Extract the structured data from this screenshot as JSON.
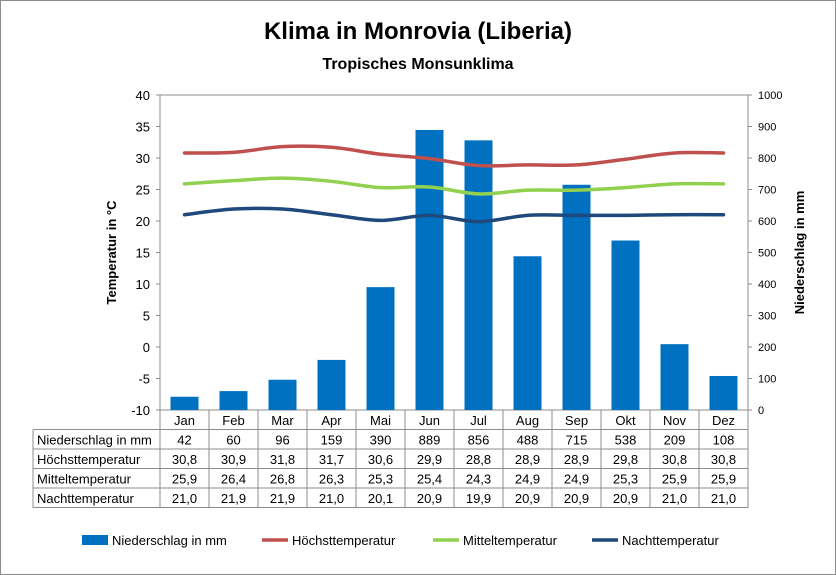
{
  "chart_data": {
    "type": "bar+line",
    "title": "Klima in Monrovia (Liberia)",
    "subtitle": "Tropisches Monsunklima",
    "categories": [
      "Jan",
      "Feb",
      "Mar",
      "Apr",
      "Mai",
      "Jun",
      "Jul",
      "Aug",
      "Sep",
      "Okt",
      "Nov",
      "Dez"
    ],
    "y_left": {
      "label": "Temperatur in °C",
      "range": [
        -10,
        40
      ],
      "step": 5
    },
    "y_right": {
      "label": "Niederschlag in mm",
      "range": [
        0,
        1000
      ],
      "step": 100
    },
    "series": [
      {
        "name": "Niederschlag in mm",
        "type": "bar",
        "axis": "right",
        "color": "#0070c0",
        "values": [
          42,
          60,
          96,
          159,
          390,
          889,
          856,
          488,
          715,
          538,
          209,
          108
        ],
        "labels": [
          "42",
          "60",
          "96",
          "159",
          "390",
          "889",
          "856",
          "488",
          "715",
          "538",
          "209",
          "108"
        ]
      },
      {
        "name": "Höchsttemperatur",
        "type": "line",
        "axis": "left",
        "color": "#c0504d",
        "values": [
          30.8,
          30.9,
          31.8,
          31.7,
          30.6,
          29.9,
          28.8,
          28.9,
          28.9,
          29.8,
          30.8,
          30.8
        ],
        "labels": [
          "30,8",
          "30,9",
          "31,8",
          "31,7",
          "30,6",
          "29,9",
          "28,8",
          "28,9",
          "28,9",
          "29,8",
          "30,8",
          "30,8"
        ]
      },
      {
        "name": "Mitteltemperatur",
        "type": "line",
        "axis": "left",
        "color": "#92d050",
        "values": [
          25.9,
          26.4,
          26.8,
          26.3,
          25.3,
          25.4,
          24.3,
          24.9,
          24.9,
          25.3,
          25.9,
          25.9
        ],
        "labels": [
          "25,9",
          "26,4",
          "26,8",
          "26,3",
          "25,3",
          "25,4",
          "24,3",
          "24,9",
          "24,9",
          "25,3",
          "25,9",
          "25,9"
        ]
      },
      {
        "name": "Nachttemperatur",
        "type": "line",
        "axis": "left",
        "color": "#1f497d",
        "values": [
          21.0,
          21.9,
          21.9,
          21.0,
          20.1,
          20.9,
          19.9,
          20.9,
          20.9,
          20.9,
          21.0,
          21.0
        ],
        "labels": [
          "21,0",
          "21,9",
          "21,9",
          "21,0",
          "20,1",
          "20,9",
          "19,9",
          "20,9",
          "20,9",
          "20,9",
          "21,0",
          "21,0"
        ]
      }
    ],
    "grid": false,
    "legend_position": "bottom",
    "data_table": true
  }
}
